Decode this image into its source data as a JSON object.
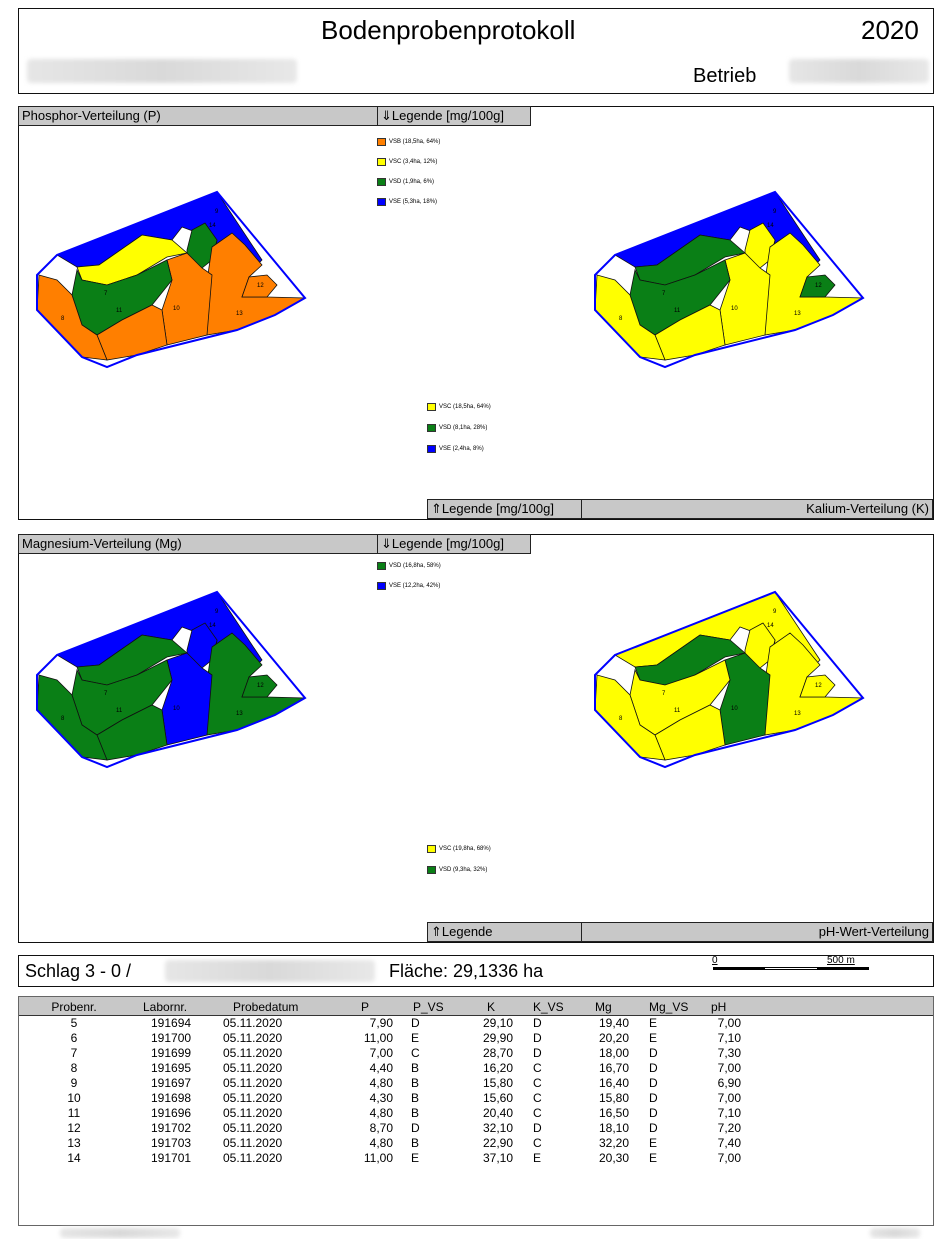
{
  "header": {
    "title": "Bodenprobenprotokoll",
    "year": "2020",
    "betrieb_label": "Betrieb"
  },
  "colors": {
    "orange": "#ff7f00",
    "yellow": "#ffff00",
    "green": "#0a7f16",
    "blue": "#0000ff",
    "panel_gray": "#c8c8c8"
  },
  "panels": {
    "phosphor": {
      "title": "Phosphor-Verteilung (P)",
      "legend_label": "⇓Legende [mg/100g]",
      "legend": [
        {
          "label": "VSB (18,5ha, 64%)",
          "color": "#ff7f00"
        },
        {
          "label": "VSC (3,4ha, 12%)",
          "color": "#ffff00"
        },
        {
          "label": "VSD (1,9ha, 6%)",
          "color": "#0a7f16"
        },
        {
          "label": "VSE (5,3ha, 18%)",
          "color": "#0000ff"
        }
      ]
    },
    "kalium": {
      "title": "Kalium-Verteilung (K)",
      "legend_label": "⇑Legende [mg/100g]",
      "legend": [
        {
          "label": "VSC (18,5ha, 64%)",
          "color": "#ffff00"
        },
        {
          "label": "VSD (8,1ha, 28%)",
          "color": "#0a7f16"
        },
        {
          "label": "VSE (2,4ha, 8%)",
          "color": "#0000ff"
        }
      ]
    },
    "magnesium": {
      "title": "Magnesium-Verteilung (Mg)",
      "legend_label": "⇓Legende [mg/100g]",
      "legend": [
        {
          "label": "VSD (16,8ha, 58%)",
          "color": "#0a7f16"
        },
        {
          "label": "VSE (12,2ha, 42%)",
          "color": "#0000ff"
        }
      ]
    },
    "ph": {
      "title": "pH-Wert-Verteilung",
      "legend_label": "⇑Legende",
      "legend": [
        {
          "label": "VSC (19,8ha, 68%)",
          "color": "#ffff00"
        },
        {
          "label": "VSD (9,3ha, 32%)",
          "color": "#0a7f16"
        }
      ]
    }
  },
  "field_numbers": [
    "7",
    "8",
    "9",
    "10",
    "11",
    "12",
    "13",
    "14"
  ],
  "maps": {
    "p": {
      "A": "#0000ff",
      "B": "#ffff00",
      "C": "#0a7f16",
      "D": "#ff7f00",
      "E": "#ff7f00",
      "F": "#ff7f00",
      "G": "#0a7f16",
      "H": "#ff7f00",
      "I": "#ff7f00"
    },
    "k": {
      "A": "#0000ff",
      "B": "#0a7f16",
      "C": "#ffff00",
      "D": "#ffff00",
      "E": "#0a7f16",
      "F": "#ffff00",
      "G": "#0a7f16",
      "H": "#ffff00",
      "I": "#ffff00"
    },
    "mg": {
      "A": "#0000ff",
      "B": "#0a7f16",
      "C": "#0000ff",
      "D": "#0a7f16",
      "E": "#0a7f16",
      "F": "#0000ff",
      "G": "#0a7f16",
      "H": "#0a7f16",
      "I": "#0a7f16"
    },
    "ph": {
      "A": "#ffff00",
      "B": "#0a7f16",
      "C": "#ffff00",
      "D": "#ffff00",
      "E": "#ffff00",
      "F": "#0a7f16",
      "G": "#ffff00",
      "H": "#ffff00",
      "I": "#ffff00"
    }
  },
  "schlag": {
    "label": "Schlag 3 - 0 /",
    "flaeche": "Fläche: 29,1336 ha",
    "scale_zero": "0",
    "scale_end": "500 m"
  },
  "table": {
    "headers": [
      "Probenr.",
      "Labornr.",
      "Probedatum",
      "P",
      "P_VS",
      "K",
      "K_VS",
      "Mg",
      "Mg_VS",
      "pH"
    ],
    "rows": [
      [
        "5",
        "191694",
        "05.11.2020",
        "7,90",
        "D",
        "29,10",
        "D",
        "19,40",
        "E",
        "7,00"
      ],
      [
        "6",
        "191700",
        "05.11.2020",
        "11,00",
        "E",
        "29,90",
        "D",
        "20,20",
        "E",
        "7,10"
      ],
      [
        "7",
        "191699",
        "05.11.2020",
        "7,00",
        "C",
        "28,70",
        "D",
        "18,00",
        "D",
        "7,30"
      ],
      [
        "8",
        "191695",
        "05.11.2020",
        "4,40",
        "B",
        "16,20",
        "C",
        "16,70",
        "D",
        "7,00"
      ],
      [
        "9",
        "191697",
        "05.11.2020",
        "4,80",
        "B",
        "15,80",
        "C",
        "16,40",
        "D",
        "6,90"
      ],
      [
        "10",
        "191698",
        "05.11.2020",
        "4,30",
        "B",
        "15,60",
        "C",
        "15,80",
        "D",
        "7,00"
      ],
      [
        "11",
        "191696",
        "05.11.2020",
        "4,80",
        "B",
        "20,40",
        "C",
        "16,50",
        "D",
        "7,10"
      ],
      [
        "12",
        "191702",
        "05.11.2020",
        "8,70",
        "D",
        "32,10",
        "D",
        "18,10",
        "D",
        "7,20"
      ],
      [
        "13",
        "191703",
        "05.11.2020",
        "4,80",
        "B",
        "22,90",
        "C",
        "32,20",
        "E",
        "7,40"
      ],
      [
        "14",
        "191701",
        "05.11.2020",
        "11,00",
        "E",
        "37,10",
        "E",
        "20,30",
        "E",
        "7,00"
      ]
    ]
  }
}
